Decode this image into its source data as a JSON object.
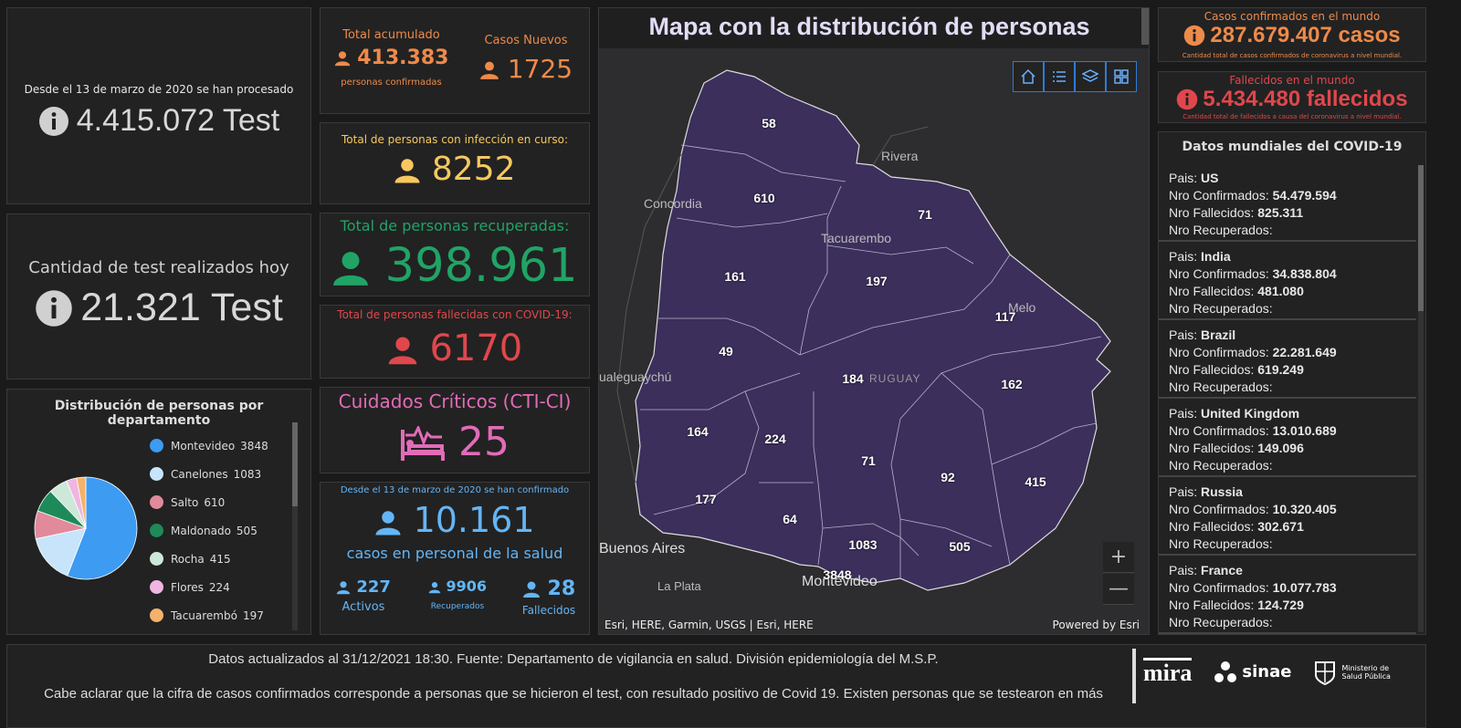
{
  "tests": {
    "caption": "Desde el 13 de marzo de 2020 se han procesado",
    "value": "4.415.072 Test"
  },
  "today": {
    "caption": "Cantidad de test realizados hoy",
    "value": "21.321 Test"
  },
  "distribution": {
    "title": "Distribución de personas por departamento",
    "legend": [
      {
        "name": "Montevideo",
        "value": "3848",
        "color": "#3d9bf2"
      },
      {
        "name": "Canelones",
        "value": "1083",
        "color": "#c7e4fb"
      },
      {
        "name": "Salto",
        "value": "610",
        "color": "#e08a9b"
      },
      {
        "name": "Maldonado",
        "value": "505",
        "color": "#1e8a5a"
      },
      {
        "name": "Rocha",
        "value": "415",
        "color": "#cde8d8"
      },
      {
        "name": "Flores",
        "value": "224",
        "color": "#f0b5e0"
      },
      {
        "name": "Tacuarembó",
        "value": "197",
        "color": "#f5b26b"
      }
    ]
  },
  "total": {
    "accum_label": "Total acumulado",
    "accum_value": "413.383",
    "accum_sub": "personas confirmadas",
    "new_label": "Casos Nuevos",
    "new_value": "1725"
  },
  "active": {
    "label": "Total de personas con infección en curso:",
    "value": "8252"
  },
  "recovered": {
    "label": "Total de personas recuperadas:",
    "value": "398.961"
  },
  "deceased": {
    "label": "Total de personas fallecidas con COVID-19:",
    "value": "6170"
  },
  "cti": {
    "label": "Cuidados Críticos (CTI-CI)",
    "value": "25"
  },
  "health": {
    "caption": "Desde el 13 de marzo de 2020 se han confirmado",
    "value": "10.161",
    "sub": "casos en personal de la salud",
    "active_value": "227",
    "active_label": "Activos",
    "recovered_value": "9906",
    "recovered_label": "Recuperados",
    "deceased_value": "28",
    "deceased_label": "Fallecidos"
  },
  "map": {
    "title": "Mapa con la distribución de personas",
    "attribution": "Esri, HERE, Garmin, USGS | Esri, HERE",
    "powered": "Powered by Esri",
    "zoom_in": "+",
    "zoom_out": "—",
    "cities": {
      "rivera": "Rivera",
      "concordia": "Concordia",
      "tacuarembo": "Tacuarembo",
      "melo": "Melo",
      "gualeguaychu": "ualeguaychú",
      "uruguay": "RUGUAY",
      "buenos_aires": "Buenos Aires",
      "la_plata": "La Plata",
      "montevideo": "Montevideo"
    },
    "dept_values": {
      "artigas": "58",
      "salto": "610",
      "rivera": "71",
      "paysandu": "161",
      "tacuarembo": "197",
      "cerro_largo": "117",
      "rio_negro": "49",
      "durazno": "184",
      "treinta_y_tres": "162",
      "soriano": "164",
      "flores": "224",
      "florida": "71",
      "lavalleja": "92",
      "rocha": "415",
      "colonia": "177",
      "san_jose": "64",
      "canelones": "1083",
      "maldonado": "505",
      "montevideo": "3848"
    }
  },
  "world_cases": {
    "label": "Casos confirmados en el mundo",
    "value": "287.679.407 casos",
    "sub": "Cantidad total de casos confirmados de coronavirus a nivel mundial."
  },
  "world_deaths": {
    "label": "Fallecidos en el mundo",
    "value": "5.434.480 fallecidos",
    "sub": "Cantidad total de fallecidos a causa del coronavirus a nivel mundial."
  },
  "world": {
    "title": "Datos mundiales del COVID-19",
    "labels": {
      "country": "Pais: ",
      "confirmed": "Nro Confirmados: ",
      "deaths": "Nro Fallecidos: ",
      "recovered": "Nro Recuperados:"
    },
    "countries": [
      {
        "name": "US",
        "confirmed": "54.479.594",
        "deaths": "825.311"
      },
      {
        "name": "India",
        "confirmed": "34.838.804",
        "deaths": "481.080"
      },
      {
        "name": "Brazil",
        "confirmed": "22.281.649",
        "deaths": "619.249"
      },
      {
        "name": "United Kingdom",
        "confirmed": "13.010.689",
        "deaths": "149.096"
      },
      {
        "name": "Russia",
        "confirmed": "10.320.405",
        "deaths": "302.671"
      },
      {
        "name": "France",
        "confirmed": "10.077.783",
        "deaths": "124.729"
      }
    ]
  },
  "footer": {
    "line1": "Datos actualizados al 31/12/2021 18:30. Fuente: Departamento de vigilancia en salud. División epidemiología del M.S.P.",
    "line2": "Cabe aclarar que la cifra de casos confirmados corresponde a personas que se hicieron el test, con resultado positivo de Covid 19. Existen personas que se testearon en más",
    "logo_mira": "mira",
    "logo_sinae": "sinae",
    "logo_msp": "Ministerio de Salud Pública"
  },
  "colors": {
    "orange": "#ee8a4a",
    "yellow": "#f6c85f",
    "green": "#21a366",
    "red": "#e0474c",
    "pink": "#e36bb8",
    "blue": "#64b5f6",
    "map_fill": "#3c2f5c"
  }
}
